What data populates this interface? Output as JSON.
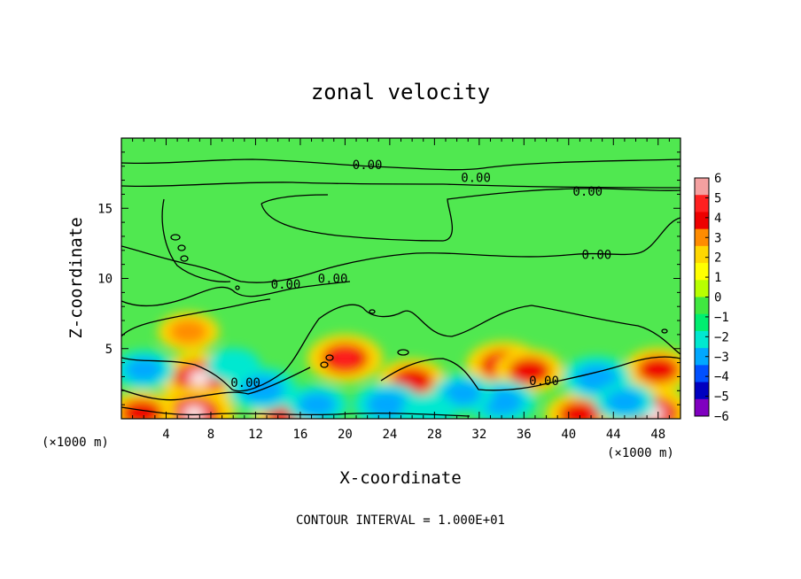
{
  "chart_data": {
    "type": "heatmap",
    "title": "zonal velocity",
    "xlabel": "X-coordinate",
    "ylabel": "Z-coordinate",
    "x_unit_left": "(×1000 m)",
    "x_unit_right": "(×1000 m)",
    "xlim": [
      0,
      50
    ],
    "ylim": [
      0,
      20
    ],
    "x_ticks": [
      4,
      8,
      12,
      16,
      20,
      24,
      28,
      32,
      36,
      40,
      44,
      48
    ],
    "y_ticks": [
      5,
      10,
      15
    ],
    "colorbar": {
      "min": -6,
      "max": 6,
      "ticks": [
        6,
        5,
        4,
        3,
        2,
        1,
        0,
        -1,
        -2,
        -3,
        -4,
        -5,
        -6
      ],
      "tick_labels": [
        "6",
        "5",
        "4",
        "3",
        "2",
        "1",
        "0",
        "−1",
        "−2",
        "−3",
        "−4",
        "−5",
        "−6"
      ],
      "colors": [
        "#f4a0a0",
        "#ff2020",
        "#ee0000",
        "#ff8c00",
        "#ffd700",
        "#ffff00",
        "#b8ff00",
        "#40e840",
        "#00ee70",
        "#00e8d0",
        "#00a8ff",
        "#0050ff",
        "#0000c0",
        "#8000c0"
      ]
    },
    "contour_label": "0.00",
    "contour_labels_xy": [
      [
        22,
        18.1
      ],
      [
        31.7,
        17.2
      ],
      [
        41.7,
        16.2
      ],
      [
        42.5,
        11.7
      ],
      [
        14.7,
        9.6
      ],
      [
        18.9,
        10.0
      ],
      [
        11.1,
        2.6
      ],
      [
        37.8,
        2.7
      ]
    ],
    "features": [
      {
        "x": 7,
        "z": 2.9,
        "value": 6
      },
      {
        "x": 6.5,
        "z": 0.4,
        "value": 6
      },
      {
        "x": 47.5,
        "z": 0.4,
        "value": 6
      },
      {
        "x": 20,
        "z": 4.3,
        "value": 5
      },
      {
        "x": 34.2,
        "z": 3.8,
        "value": 5
      },
      {
        "x": 36.5,
        "z": 3.4,
        "value": 4
      },
      {
        "x": 26,
        "z": 2.7,
        "value": 4
      },
      {
        "x": 48,
        "z": 3.5,
        "value": 4
      },
      {
        "x": 6,
        "z": 6.2,
        "value": 3
      },
      {
        "x": 1.8,
        "z": 0.4,
        "value": 4
      },
      {
        "x": 14.8,
        "z": 0.3,
        "value": 4
      },
      {
        "x": 41,
        "z": 0.3,
        "value": 4
      },
      {
        "x": 42.5,
        "z": 2.9,
        "value": -4
      },
      {
        "x": 23.8,
        "z": 1.0,
        "value": -4
      },
      {
        "x": 34,
        "z": 1.2,
        "value": -4
      },
      {
        "x": 12.6,
        "z": 2.1,
        "value": -4
      },
      {
        "x": 2,
        "z": 3.5,
        "value": -3
      },
      {
        "x": 30.5,
        "z": 1.8,
        "value": -3
      },
      {
        "x": 17.5,
        "z": 1.0,
        "value": -3
      },
      {
        "x": 45,
        "z": 1.2,
        "value": -3
      },
      {
        "x": 10,
        "z": 3.8,
        "value": -2
      },
      {
        "x": 27.5,
        "z": 0.6,
        "value": -2
      }
    ],
    "footer": "CONTOUR INTERVAL = 1.000E+01"
  }
}
